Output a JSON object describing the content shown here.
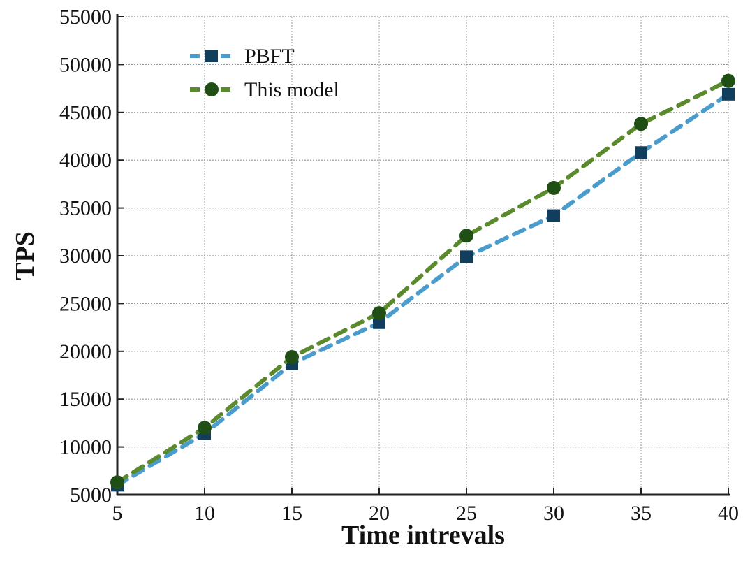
{
  "chart_data": {
    "type": "line",
    "title": "",
    "xlabel": "Time intrevals",
    "ylabel": "TPS",
    "x": [
      5,
      10,
      15,
      20,
      25,
      30,
      35,
      40
    ],
    "xlim": [
      5,
      40
    ],
    "ylim": [
      5000,
      55000
    ],
    "xticks": [
      "5",
      "10",
      "15",
      "20",
      "25",
      "30",
      "35",
      "40"
    ],
    "yticks": [
      "5000",
      "10000",
      "15000",
      "20000",
      "25000",
      "30000",
      "35000",
      "40000",
      "45000",
      "50000",
      "55000"
    ],
    "grid": true,
    "legend_position": "top-left",
    "series": [
      {
        "name": "PBFT",
        "values": [
          6000,
          11400,
          18700,
          23000,
          29900,
          34200,
          40800,
          46900
        ],
        "line_color": "#4a9ccc",
        "marker_color": "#123e5e",
        "marker": "square",
        "dash": "dashed"
      },
      {
        "name": "This model",
        "values": [
          6300,
          12000,
          19400,
          24000,
          32100,
          37100,
          43800,
          48300
        ],
        "line_color": "#5a8a2c",
        "marker_color": "#1f4f14",
        "marker": "circle",
        "dash": "dashed"
      }
    ]
  }
}
